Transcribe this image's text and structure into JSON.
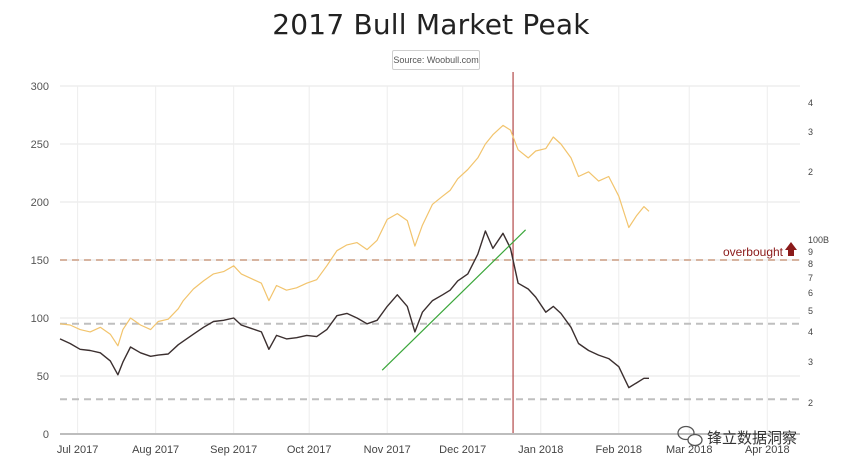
{
  "chart_data": {
    "type": "line",
    "title": "2017 Bull Market Peak",
    "source": "Source: Woobull.com",
    "x_tick_labels": [
      "Jul 2017",
      "Aug 2017",
      "Sep 2017",
      "Oct 2017",
      "Nov 2017",
      "Dec 2017",
      "Jan 2018",
      "Feb 2018",
      "Mar 2018",
      "Apr 2018"
    ],
    "x_range": [
      "2017-06-24",
      "2018-04-14"
    ],
    "y_left": {
      "ticks": [
        0,
        50,
        100,
        150,
        200,
        250,
        300
      ],
      "range": [
        0,
        300
      ],
      "gridlines": true
    },
    "y_right": {
      "tick_labels": [
        "4",
        "3",
        "2",
        "100B",
        "9",
        "8",
        "7",
        "6",
        "5",
        "4",
        "3",
        "2"
      ]
    },
    "series": [
      {
        "color": "#f2c46d",
        "points": [
          [
            "2017-06-24",
            95
          ],
          [
            "2017-06-28",
            94
          ],
          [
            "2017-07-02",
            90
          ],
          [
            "2017-07-06",
            88
          ],
          [
            "2017-07-10",
            92
          ],
          [
            "2017-07-14",
            86
          ],
          [
            "2017-07-17",
            76
          ],
          [
            "2017-07-19",
            90
          ],
          [
            "2017-07-22",
            100
          ],
          [
            "2017-07-26",
            94
          ],
          [
            "2017-07-30",
            90
          ],
          [
            "2017-08-02",
            97
          ],
          [
            "2017-08-06",
            99
          ],
          [
            "2017-08-10",
            108
          ],
          [
            "2017-08-12",
            115
          ],
          [
            "2017-08-16",
            125
          ],
          [
            "2017-08-20",
            132
          ],
          [
            "2017-08-24",
            138
          ],
          [
            "2017-08-28",
            140
          ],
          [
            "2017-09-01",
            145
          ],
          [
            "2017-09-04",
            138
          ],
          [
            "2017-09-08",
            134
          ],
          [
            "2017-09-12",
            130
          ],
          [
            "2017-09-15",
            115
          ],
          [
            "2017-09-18",
            128
          ],
          [
            "2017-09-22",
            124
          ],
          [
            "2017-09-26",
            126
          ],
          [
            "2017-09-30",
            130
          ],
          [
            "2017-10-04",
            133
          ],
          [
            "2017-10-08",
            145
          ],
          [
            "2017-10-12",
            158
          ],
          [
            "2017-10-16",
            163
          ],
          [
            "2017-10-20",
            165
          ],
          [
            "2017-10-24",
            159
          ],
          [
            "2017-10-28",
            167
          ],
          [
            "2017-11-01",
            185
          ],
          [
            "2017-11-05",
            190
          ],
          [
            "2017-11-09",
            184
          ],
          [
            "2017-11-12",
            162
          ],
          [
            "2017-11-15",
            180
          ],
          [
            "2017-11-19",
            198
          ],
          [
            "2017-11-23",
            205
          ],
          [
            "2017-11-26",
            210
          ],
          [
            "2017-11-29",
            220
          ],
          [
            "2017-12-03",
            228
          ],
          [
            "2017-12-07",
            238
          ],
          [
            "2017-12-10",
            250
          ],
          [
            "2017-12-13",
            258
          ],
          [
            "2017-12-17",
            266
          ],
          [
            "2017-12-20",
            262
          ],
          [
            "2017-12-23",
            245
          ],
          [
            "2017-12-27",
            238
          ],
          [
            "2017-12-30",
            244
          ],
          [
            "2018-01-03",
            246
          ],
          [
            "2018-01-06",
            256
          ],
          [
            "2018-01-09",
            250
          ],
          [
            "2018-01-13",
            238
          ],
          [
            "2018-01-16",
            222
          ],
          [
            "2018-01-20",
            226
          ],
          [
            "2018-01-24",
            218
          ],
          [
            "2018-01-28",
            222
          ],
          [
            "2018-02-01",
            205
          ],
          [
            "2018-02-05",
            178
          ],
          [
            "2018-02-08",
            188
          ],
          [
            "2018-02-11",
            196
          ],
          [
            "2018-02-13",
            192
          ]
        ]
      },
      {
        "color": "#3b2f2f",
        "points": [
          [
            "2017-06-24",
            82
          ],
          [
            "2017-06-28",
            78
          ],
          [
            "2017-07-02",
            73
          ],
          [
            "2017-07-06",
            72
          ],
          [
            "2017-07-10",
            70
          ],
          [
            "2017-07-14",
            63
          ],
          [
            "2017-07-17",
            51
          ],
          [
            "2017-07-19",
            62
          ],
          [
            "2017-07-22",
            75
          ],
          [
            "2017-07-26",
            70
          ],
          [
            "2017-07-30",
            67
          ],
          [
            "2017-08-02",
            68
          ],
          [
            "2017-08-06",
            69
          ],
          [
            "2017-08-10",
            77
          ],
          [
            "2017-08-12",
            80
          ],
          [
            "2017-08-16",
            86
          ],
          [
            "2017-08-20",
            92
          ],
          [
            "2017-08-24",
            97
          ],
          [
            "2017-08-28",
            98
          ],
          [
            "2017-09-01",
            100
          ],
          [
            "2017-09-04",
            94
          ],
          [
            "2017-09-08",
            91
          ],
          [
            "2017-09-12",
            88
          ],
          [
            "2017-09-15",
            73
          ],
          [
            "2017-09-18",
            85
          ],
          [
            "2017-09-22",
            82
          ],
          [
            "2017-09-26",
            83
          ],
          [
            "2017-09-30",
            85
          ],
          [
            "2017-10-04",
            84
          ],
          [
            "2017-10-08",
            90
          ],
          [
            "2017-10-12",
            102
          ],
          [
            "2017-10-16",
            104
          ],
          [
            "2017-10-20",
            100
          ],
          [
            "2017-10-24",
            95
          ],
          [
            "2017-10-28",
            98
          ],
          [
            "2017-11-01",
            110
          ],
          [
            "2017-11-05",
            120
          ],
          [
            "2017-11-09",
            110
          ],
          [
            "2017-11-12",
            88
          ],
          [
            "2017-11-15",
            105
          ],
          [
            "2017-11-19",
            115
          ],
          [
            "2017-11-23",
            120
          ],
          [
            "2017-11-26",
            124
          ],
          [
            "2017-11-29",
            132
          ],
          [
            "2017-12-03",
            138
          ],
          [
            "2017-12-07",
            155
          ],
          [
            "2017-12-10",
            175
          ],
          [
            "2017-12-13",
            160
          ],
          [
            "2017-12-17",
            173
          ],
          [
            "2017-12-20",
            160
          ],
          [
            "2017-12-23",
            130
          ],
          [
            "2017-12-27",
            125
          ],
          [
            "2017-12-30",
            118
          ],
          [
            "2018-01-03",
            105
          ],
          [
            "2018-01-06",
            110
          ],
          [
            "2018-01-09",
            104
          ],
          [
            "2018-01-13",
            92
          ],
          [
            "2018-01-16",
            78
          ],
          [
            "2018-01-20",
            72
          ],
          [
            "2018-01-24",
            68
          ],
          [
            "2018-01-28",
            65
          ],
          [
            "2018-02-01",
            58
          ],
          [
            "2018-02-05",
            40
          ],
          [
            "2018-02-08",
            44
          ],
          [
            "2018-02-11",
            48
          ],
          [
            "2018-02-13",
            48
          ]
        ]
      },
      {
        "color": "#3aa63a",
        "points": [
          [
            "2017-10-30",
            55
          ],
          [
            "2017-12-26",
            176
          ]
        ]
      }
    ],
    "reference_lines_y": [
      {
        "y": 150,
        "color": "#d7b4a0",
        "dash": true
      },
      {
        "y": 95,
        "color": "#bfbfbf",
        "dash": true
      },
      {
        "y": 30,
        "color": "#bfbfbf",
        "dash": true
      }
    ],
    "reference_line_x": {
      "date": "2017-12-21",
      "color": "#b24848"
    },
    "annotation": {
      "text": "overbought",
      "arrow": "up",
      "color": "#8b1a1a",
      "y": 150
    }
  },
  "watermark": {
    "text": "锋立数据洞察",
    "icon": "wechat-icon"
  }
}
